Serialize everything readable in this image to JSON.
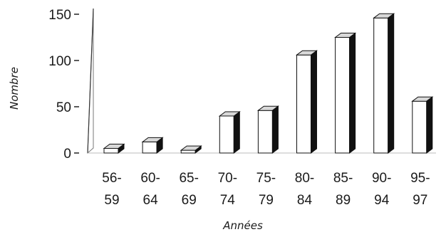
{
  "chart_data": {
    "type": "bar",
    "style": "3d",
    "categories": [
      [
        "56-",
        "59"
      ],
      [
        "60-",
        "64"
      ],
      [
        "65-",
        "69"
      ],
      [
        "70-",
        "74"
      ],
      [
        "75-",
        "79"
      ],
      [
        "80-",
        "84"
      ],
      [
        "85-",
        "89"
      ],
      [
        "90-",
        "94"
      ],
      [
        "95-",
        "97"
      ]
    ],
    "values": [
      5,
      12,
      3,
      40,
      46,
      106,
      125,
      146,
      56
    ],
    "xlabel": "Années",
    "ylabel": "Nombre",
    "ylim": [
      0,
      150
    ],
    "yticks": [
      0,
      50,
      100,
      150
    ],
    "grid": false,
    "colors": {
      "bar_front": "#ffffff",
      "bar_side": "#111111",
      "bar_top": "#d9d9d9",
      "axis": "#333333"
    }
  }
}
